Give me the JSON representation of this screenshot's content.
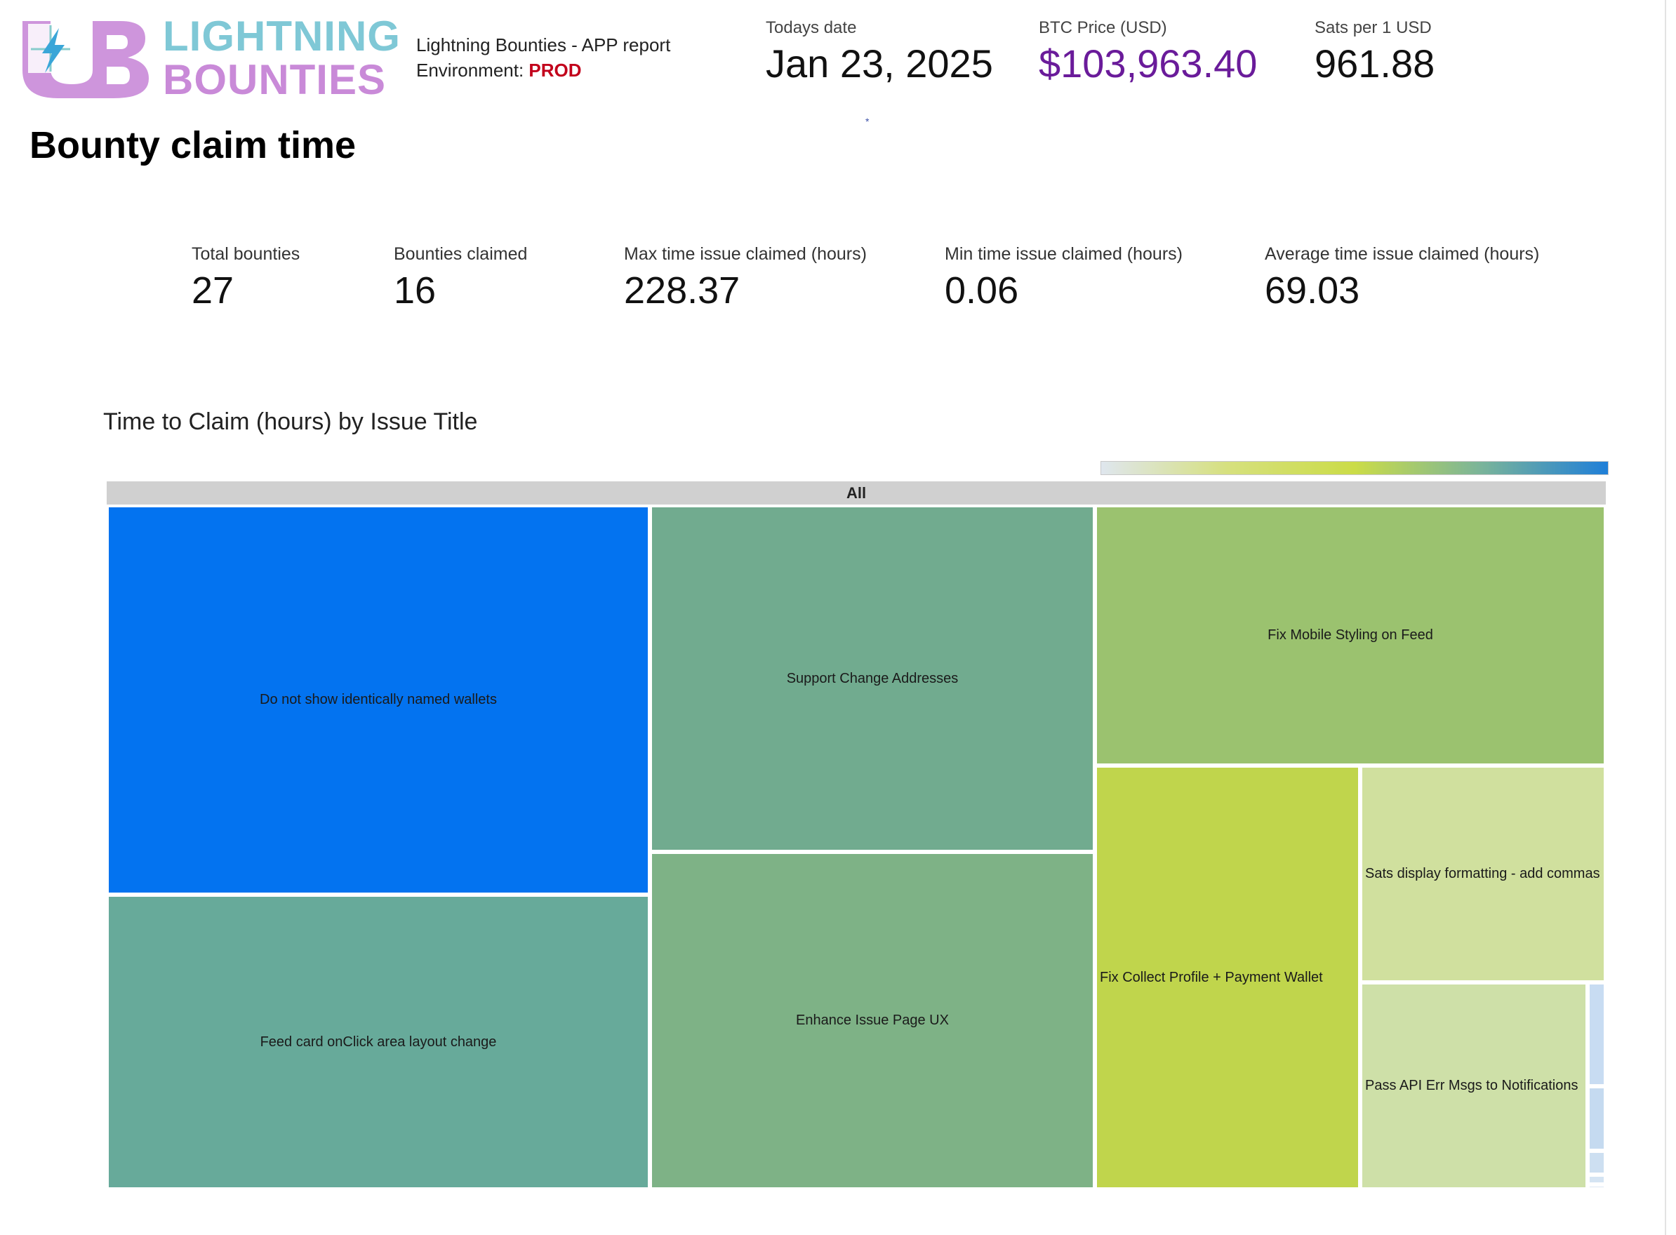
{
  "logo": {
    "line1": "LIGHTNING",
    "line2": "BOUNTIES",
    "icon": "lightning-bolt-icon"
  },
  "header": {
    "report_title": "Lightning Bounties - APP report",
    "environment_label": "Environment:",
    "environment_value": "PROD",
    "today_label": "Todays date",
    "today_value": "Jan 23, 2025",
    "btc_label": "BTC Price (USD)",
    "btc_value": "$103,963.40",
    "sats_label": "Sats per 1 USD",
    "sats_value": "961.88",
    "marker": "*"
  },
  "page_title": "Bounty claim time",
  "stats": {
    "total_bounties_label": "Total bounties",
    "total_bounties_value": "27",
    "claimed_label": "Bounties claimed",
    "claimed_value": "16",
    "max_label": "Max time issue claimed (hours)",
    "max_value": "228.37",
    "min_label": "Min time issue claimed (hours)",
    "min_value": "0.06",
    "avg_label": "Average time issue claimed (hours)",
    "avg_value": "69.03"
  },
  "colors": {
    "env_prod": "#c2001b",
    "btc_price": "#6a1b9a"
  },
  "chart_data": {
    "type": "treemap",
    "title": "Time to Claim (hours) by Issue Title",
    "root_label": "All",
    "color_scale": {
      "low_color": "#dfe6ee",
      "mid_color": "#cbdc48",
      "high_color": "#1f7fd8"
    },
    "items": [
      {
        "label": "Do not show identically named wallets",
        "value": 228.37,
        "color": "#0373f0"
      },
      {
        "label": "Feed card onClick area layout change",
        "value": 120.0,
        "color": "#67aa9a"
      },
      {
        "label": "Support Change Addresses",
        "value": 104.0,
        "color": "#71ab8f"
      },
      {
        "label": "Enhance Issue Page UX",
        "value": 100.0,
        "color": "#7eb286"
      },
      {
        "label": "Fix Mobile Styling on Feed",
        "value": 88.0,
        "color": "#9bc26f"
      },
      {
        "label": "Fix Collect Profile + Payment Wallet",
        "value": 76.0,
        "color": "#c0d54c"
      },
      {
        "label": "Sats display formatting - add commas",
        "value": 36.0,
        "color": "#d0e09e"
      },
      {
        "label": "Pass API Err Msgs to Notifications",
        "value": 34.0,
        "color": "#cee0a8"
      },
      {
        "label": "",
        "value": 4.0,
        "color": "#c8dcf2"
      },
      {
        "label": "",
        "value": 3.0,
        "color": "#c5daf0"
      },
      {
        "label": "",
        "value": 2.0,
        "color": "#cddff1"
      },
      {
        "label": "",
        "value": 1.0,
        "color": "#d5e4f3"
      },
      {
        "label": "",
        "value": 0.06,
        "color": "#dde8f4"
      }
    ]
  }
}
